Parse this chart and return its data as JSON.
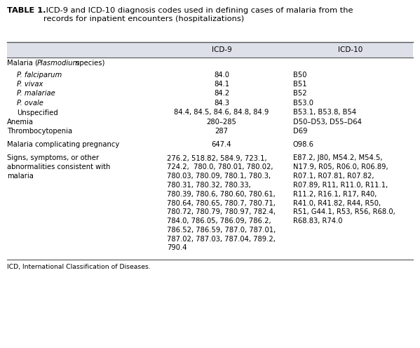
{
  "title_bold": "TABLE 1.",
  "title_rest": " ICD-9 and ICD-10 diagnosis codes used in defining cases of malaria from the\nrecords for inpatient encounters (hospitalizations)",
  "col_headers": [
    "ICD-9",
    "ICD-10"
  ],
  "header_bg": "#dde0e8",
  "rows": [
    {
      "label": "Malaria (Plasmodium species)",
      "icd9": "",
      "icd10": "",
      "label_style": "mixed",
      "indent": 0,
      "separator_above": false
    },
    {
      "label": "P. falciparum",
      "icd9": "84.0",
      "icd10": "B50",
      "label_style": "italic",
      "indent": 1,
      "separator_above": false
    },
    {
      "label": "P. vivax",
      "icd9": "84.1",
      "icd10": "B51",
      "label_style": "italic",
      "indent": 1,
      "separator_above": false
    },
    {
      "label": "P. malariae",
      "icd9": "84.2",
      "icd10": "B52",
      "label_style": "italic",
      "indent": 1,
      "separator_above": false
    },
    {
      "label": "P. ovale",
      "icd9": "84.3",
      "icd10": "B53.0",
      "label_style": "italic",
      "indent": 1,
      "separator_above": false
    },
    {
      "label": "Unspecified",
      "icd9": "84.4, 84.5, 84.6, 84.8, 84.9",
      "icd10": "B53.1, B53.8, B54",
      "label_style": "normal",
      "indent": 1,
      "separator_above": false
    },
    {
      "label": "Anemia",
      "icd9": "280–285",
      "icd10": "D50–D53, D55–D64",
      "label_style": "normal",
      "indent": 0,
      "separator_above": false
    },
    {
      "label": "Thrombocytopenia",
      "icd9": "287",
      "icd10": "D69",
      "label_style": "normal",
      "indent": 0,
      "separator_above": false
    },
    {
      "label": "Malaria complicating pregnancy",
      "icd9": "647.4",
      "icd10": "O98.6",
      "label_style": "normal",
      "indent": 0,
      "separator_above": true
    },
    {
      "label": "Signs, symptoms, or other\nabnormalities consistent with\nmalaria",
      "icd9": "276.2, 518.82, 584.9, 723.1,\n724.2,  780.0, 780.01, 780.02,\n780.03, 780.09, 780.1, 780.3,\n780.31, 780.32, 780.33,\n780.39, 780.6, 780.60, 780.61,\n780.64, 780.65, 780.7, 780.71,\n780.72, 780.79, 780.97, 782.4,\n784.0, 786.05, 786.09, 786.2,\n786.52, 786.59, 787.0, 787.01,\n787.02, 787.03, 787.04, 789.2,\n790.4",
      "icd10": "E87.2, J80, M54.2, M54.5,\nN17.9, R05, R06.0, R06.89,\nR07.1, R07.81, R07.82,\nR07.89, R11, R11.0, R11.1,\nR11.2, R16.1, R17, R40,\nR41.0, R41.82, R44, R50,\nR51, G44.1, R53, R56, R68.0,\nR68.83, R74.0",
      "label_style": "normal",
      "indent": 0,
      "separator_above": false
    }
  ],
  "footer": "ICD, International Classification of Diseases.",
  "bg_color": "#ffffff",
  "border_color": "#555555",
  "text_color": "#000000",
  "font_size": 7.2,
  "header_font_size": 7.5,
  "title_font_size": 8.2
}
